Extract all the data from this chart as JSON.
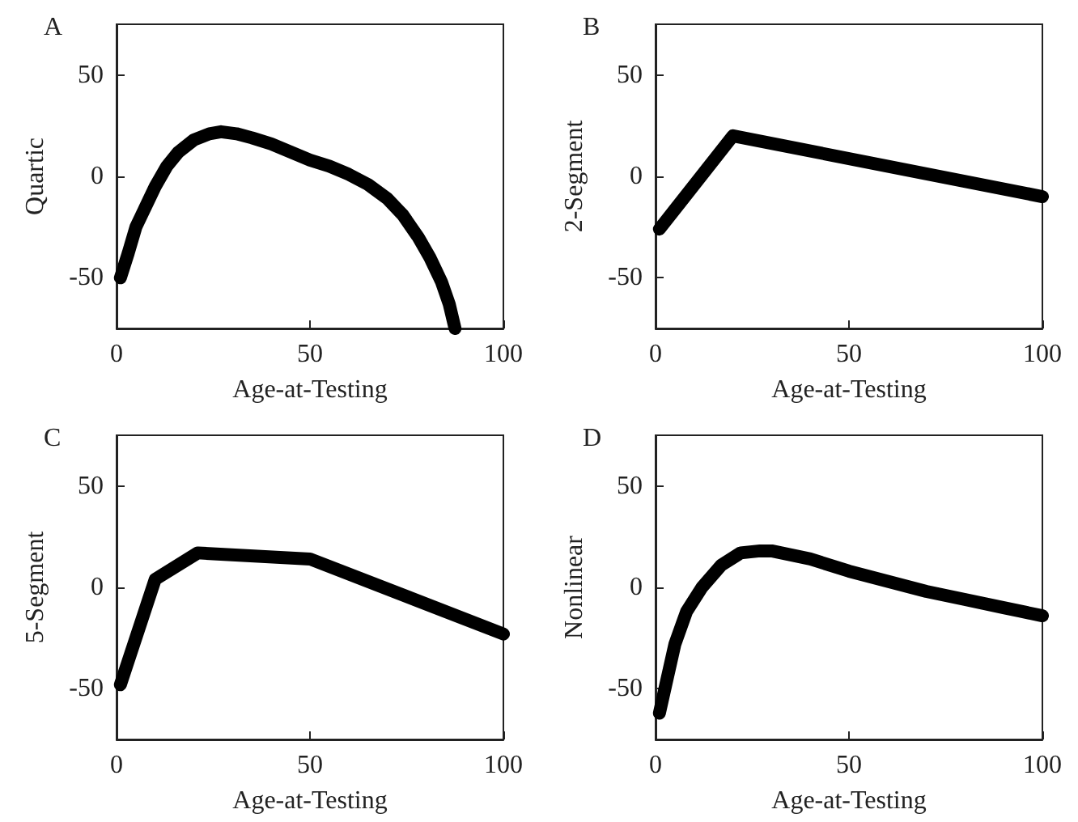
{
  "chart_data": [
    {
      "type": "line",
      "title": "A",
      "xlabel": "Age-at-Testing",
      "ylabel": "Quartic",
      "xlim": [
        0,
        100
      ],
      "xticks": [
        0,
        50,
        100
      ],
      "ylim": [
        -75,
        75
      ],
      "yticks": [
        -50,
        0,
        50
      ],
      "grid": false,
      "series": [
        {
          "color": "#000000",
          "x": [
            1,
            3,
            5,
            7,
            10,
            13,
            16,
            20,
            24,
            27,
            31,
            35,
            40,
            45,
            50,
            55,
            60,
            65,
            70,
            74,
            78,
            81,
            84,
            86,
            87.5
          ],
          "values": [
            -50,
            -38,
            -25,
            -17,
            -5,
            5,
            12,
            18,
            21,
            22,
            21,
            19,
            16,
            12,
            8,
            5,
            1,
            -4,
            -11,
            -19,
            -30,
            -40,
            -52,
            -63,
            -75
          ]
        }
      ]
    },
    {
      "type": "line",
      "title": "B",
      "xlabel": "Age-at-Testing",
      "ylabel": "2-Segment",
      "xlim": [
        0,
        100
      ],
      "xticks": [
        0,
        50,
        100
      ],
      "ylim": [
        -75,
        75
      ],
      "yticks": [
        -50,
        0,
        50
      ],
      "grid": false,
      "series": [
        {
          "color": "#000000",
          "x": [
            1,
            20,
            100
          ],
          "values": [
            -26,
            20,
            -10
          ]
        }
      ]
    },
    {
      "type": "line",
      "title": "C",
      "xlabel": "Age-at-Testing",
      "ylabel": "5-Segment",
      "xlim": [
        0,
        100
      ],
      "xticks": [
        0,
        50,
        100
      ],
      "ylim": [
        -75,
        75
      ],
      "yticks": [
        -50,
        0,
        50
      ],
      "grid": false,
      "series": [
        {
          "color": "#000000",
          "x": [
            1,
            10,
            21,
            50,
            100
          ],
          "values": [
            -48,
            4,
            17,
            14,
            -23
          ]
        }
      ]
    },
    {
      "type": "line",
      "title": "D",
      "xlabel": "Age-at-Testing",
      "ylabel": "Nonlinear",
      "xlim": [
        0,
        100
      ],
      "xticks": [
        0,
        50,
        100
      ],
      "ylim": [
        -75,
        75
      ],
      "yticks": [
        -50,
        0,
        50
      ],
      "grid": false,
      "series": [
        {
          "color": "#000000",
          "x": [
            1,
            3,
            5,
            8,
            12,
            17,
            22,
            27,
            30,
            35,
            40,
            50,
            60,
            70,
            80,
            90,
            100
          ],
          "values": [
            -62,
            -45,
            -28,
            -12,
            0,
            11,
            17,
            18,
            18,
            16,
            14,
            8,
            3,
            -2,
            -6,
            -10,
            -14
          ]
        }
      ]
    }
  ]
}
